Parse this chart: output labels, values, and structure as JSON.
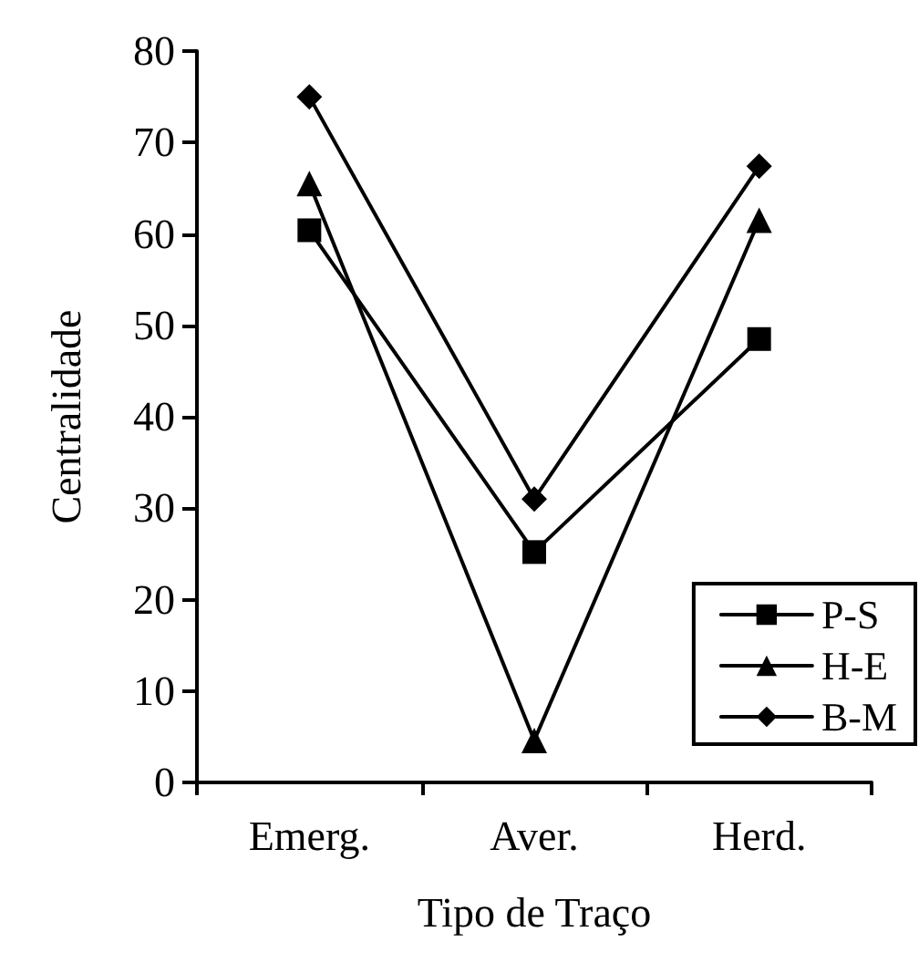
{
  "chart_data": {
    "type": "line",
    "xlabel": "Tipo de Traço",
    "ylabel": "Centralidade",
    "categories": [
      "Emerg.",
      "Aver.",
      "Herd."
    ],
    "series": [
      {
        "name": "P-S",
        "color": "#000000",
        "marker": "square",
        "values": [
          60.4,
          25.2,
          48.5
        ]
      },
      {
        "name": "H-E",
        "color": "#000000",
        "marker": "triangle",
        "values": [
          65.5,
          4.6,
          61.5
        ]
      },
      {
        "name": "B-M",
        "color": "#000000",
        "marker": "diamond",
        "values": [
          75,
          31,
          67.4
        ]
      }
    ],
    "ylim": [
      0,
      80
    ],
    "yticks": [
      0,
      10,
      20,
      30,
      40,
      50,
      60,
      70,
      80
    ],
    "grid": false,
    "legend": "bottom right",
    "line_style": "solid"
  }
}
